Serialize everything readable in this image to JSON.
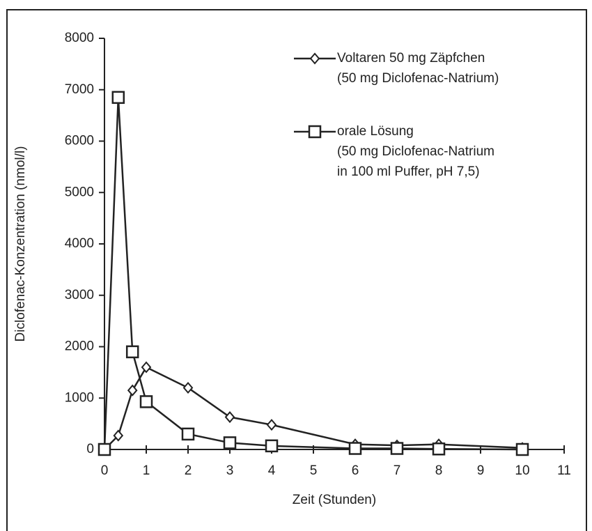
{
  "chart_data": {
    "type": "line",
    "x_label": "Zeit (Stunden)",
    "y_label": "Diclofenac-Konzentration (nmol/l)",
    "xlim": [
      0,
      11
    ],
    "xticks": [
      0,
      1,
      2,
      3,
      4,
      5,
      6,
      7,
      8,
      9,
      10,
      11
    ],
    "ylim": [
      0,
      8000
    ],
    "yticks": [
      0,
      1000,
      2000,
      3000,
      4000,
      5000,
      6000,
      7000,
      8000
    ],
    "grid": false,
    "legend_position": "upper right",
    "series": [
      {
        "name": "Voltaren 50 mg Zäpfchen",
        "note_lines": [
          "(50 mg Diclofenac-Natrium)"
        ],
        "marker": "diamond",
        "color": "#222222",
        "x": [
          0,
          0.33,
          0.67,
          1,
          2,
          3,
          4,
          6,
          7,
          8,
          10
        ],
        "values": [
          0,
          270,
          1150,
          1600,
          1200,
          630,
          480,
          100,
          80,
          100,
          30
        ]
      },
      {
        "name": "orale Lösung",
        "note_lines": [
          "(50 mg Diclofenac-Natrium",
          "in 100 ml Puffer, pH 7,5)"
        ],
        "marker": "square",
        "color": "#222222",
        "x": [
          0,
          0.33,
          0.67,
          1,
          2,
          3,
          4,
          6,
          7,
          8,
          10
        ],
        "values": [
          0,
          6850,
          1900,
          930,
          300,
          130,
          70,
          20,
          20,
          10,
          0
        ]
      }
    ]
  }
}
